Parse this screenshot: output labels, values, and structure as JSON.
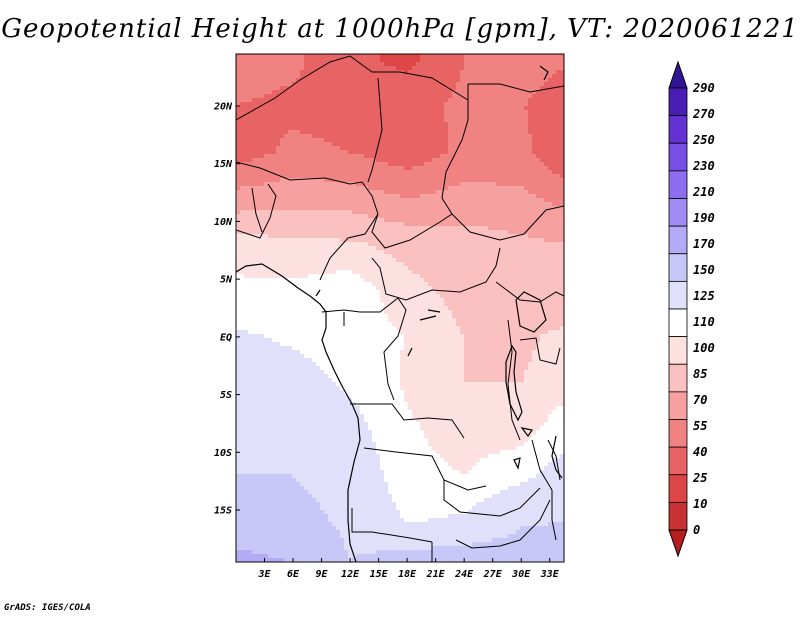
{
  "chart_data": {
    "type": "heatmap",
    "title": "Geopotential Height at 1000hPa [gpm], VT: 2020061221",
    "variable": "Geopotential Height",
    "level": "1000hPa",
    "units": "gpm",
    "valid_time": "2020061221",
    "x_range": [
      0,
      34.5
    ],
    "y_range": [
      -19.5,
      24.5
    ],
    "x_ticks": [
      {
        "value": 3,
        "label": "3E"
      },
      {
        "value": 6,
        "label": "6E"
      },
      {
        "value": 9,
        "label": "9E"
      },
      {
        "value": 12,
        "label": "12E"
      },
      {
        "value": 15,
        "label": "15E"
      },
      {
        "value": 18,
        "label": "18E"
      },
      {
        "value": 21,
        "label": "21E"
      },
      {
        "value": 24,
        "label": "24E"
      },
      {
        "value": 27,
        "label": "27E"
      },
      {
        "value": 30,
        "label": "30E"
      },
      {
        "value": 33,
        "label": "33E"
      }
    ],
    "y_ticks": [
      {
        "value": 20,
        "label": "20N"
      },
      {
        "value": 15,
        "label": "15N"
      },
      {
        "value": 10,
        "label": "10N"
      },
      {
        "value": 5,
        "label": "5N"
      },
      {
        "value": 0,
        "label": "EQ"
      },
      {
        "value": -5,
        "label": "5S"
      },
      {
        "value": -10,
        "label": "10S"
      },
      {
        "value": -15,
        "label": "15S"
      }
    ],
    "colorbar": {
      "levels": [
        0,
        10,
        25,
        40,
        55,
        70,
        85,
        100,
        110,
        125,
        150,
        170,
        190,
        210,
        230,
        250,
        270,
        290
      ],
      "labels": [
        "0",
        "10",
        "25",
        "40",
        "55",
        "70",
        "85",
        "100",
        "110",
        "125",
        "150",
        "170",
        "190",
        "210",
        "230",
        "250",
        "270",
        "290"
      ],
      "colors": [
        "#b41e1e",
        "#c83232",
        "#dc4646",
        "#e86464",
        "#f08282",
        "#f6a0a0",
        "#fbc0c0",
        "#fde0e0",
        "#ffffff",
        "#e0e0fa",
        "#c8c8f8",
        "#b4aaf6",
        "#a08cf2",
        "#8c6eee",
        "#7850e6",
        "#6432d2",
        "#4a1eb4",
        "#321496"
      ]
    },
    "field_rows": [
      {
        "lat": 24,
        "lons": [
          0,
          6,
          12,
          18,
          24,
          30,
          34
        ],
        "values": [
          62,
          58,
          44,
          36,
          55,
          66,
          58
        ]
      },
      {
        "lat": 20,
        "lons": [
          0,
          6,
          12,
          18,
          24,
          30,
          34
        ],
        "values": [
          55,
          52,
          50,
          50,
          58,
          56,
          45
        ]
      },
      {
        "lat": 16,
        "lons": [
          0,
          6,
          12,
          18,
          24,
          30,
          34
        ],
        "values": [
          48,
          58,
          55,
          46,
          58,
          60,
          43
        ]
      },
      {
        "lat": 12,
        "lons": [
          0,
          6,
          12,
          18,
          24,
          30,
          34
        ],
        "values": [
          76,
          80,
          78,
          70,
          76,
          74,
          66
        ]
      },
      {
        "lat": 8,
        "lons": [
          0,
          6,
          12,
          18,
          24,
          30,
          34
        ],
        "values": [
          106,
          104,
          102,
          96,
          92,
          88,
          86
        ]
      },
      {
        "lat": 4,
        "lons": [
          0,
          6,
          12,
          18,
          24,
          30,
          34
        ],
        "values": [
          112,
          112,
          116,
          104,
          96,
          94,
          92
        ]
      },
      {
        "lat": 0,
        "lons": [
          0,
          6,
          12,
          18,
          24,
          30,
          34
        ],
        "values": [
          128,
          122,
          114,
          110,
          100,
          98,
          102
        ]
      },
      {
        "lat": -4,
        "lons": [
          0,
          6,
          12,
          18,
          24,
          30,
          34
        ],
        "values": [
          136,
          134,
          122,
          108,
          100,
          100,
          104
        ]
      },
      {
        "lat": -8,
        "lons": [
          0,
          6,
          12,
          18,
          24,
          30,
          34
        ],
        "values": [
          140,
          140,
          132,
          112,
          104,
          104,
          116
        ]
      },
      {
        "lat": -12,
        "lons": [
          0,
          6,
          12,
          18,
          24,
          30,
          34
        ],
        "values": [
          150,
          150,
          140,
          114,
          110,
          120,
          132
        ]
      },
      {
        "lat": -16,
        "lons": [
          0,
          6,
          12,
          18,
          24,
          30,
          34
        ],
        "values": [
          162,
          158,
          146,
          124,
          128,
          148,
          150
        ]
      },
      {
        "lat": -19.5,
        "lons": [
          0,
          6,
          12,
          18,
          24,
          30,
          34
        ],
        "values": [
          174,
          170,
          150,
          160,
          166,
          162,
          160
        ]
      }
    ]
  },
  "credit": "GrADS: IGES/COLA"
}
